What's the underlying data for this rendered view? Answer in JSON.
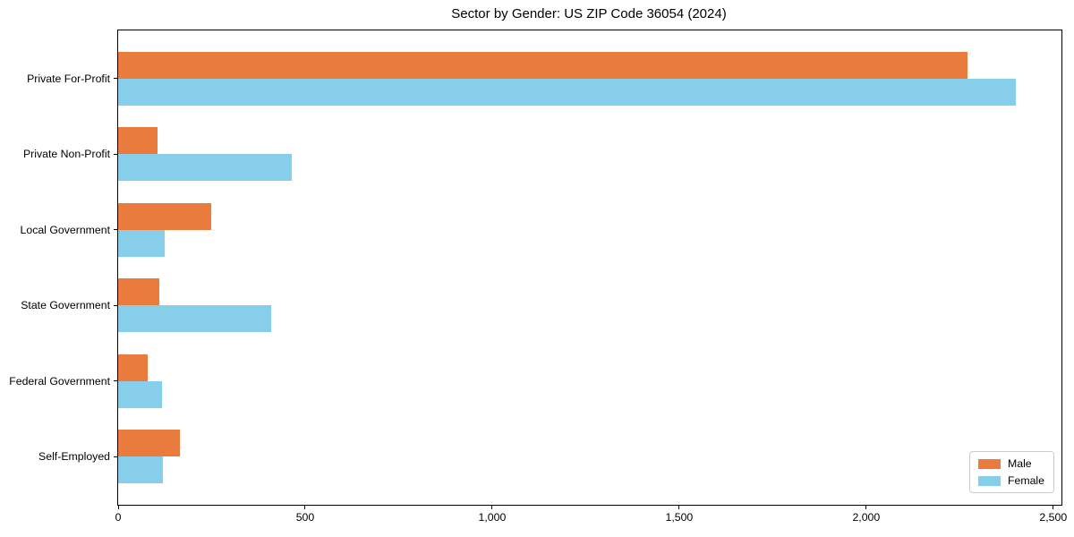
{
  "chart_data": {
    "type": "bar",
    "orientation": "horizontal",
    "title": "Sector by Gender: US ZIP Code 36054 (2024)",
    "categories": [
      "Private For-Profit",
      "Private Non-Profit",
      "Local Government",
      "State Government",
      "Federal Government",
      "Self-Employed"
    ],
    "series": [
      {
        "name": "Male",
        "color": "#e97b3d",
        "values": [
          2270,
          105,
          250,
          110,
          80,
          165
        ]
      },
      {
        "name": "Female",
        "color": "#87ceeb",
        "values": [
          2400,
          465,
          125,
          410,
          117,
          120
        ]
      }
    ],
    "xlabel": "",
    "ylabel": "",
    "xlim": [
      0,
      2522
    ],
    "xticks": [
      0,
      500,
      1000,
      1500,
      2000,
      2500
    ],
    "xtick_labels": [
      "0",
      "500",
      "1,000",
      "1,500",
      "2,000",
      "2,500"
    ],
    "grid": false,
    "legend": {
      "position": "lower right"
    },
    "colors": {
      "spine": "#000000",
      "background": "#ffffff",
      "text": "#000000"
    }
  }
}
